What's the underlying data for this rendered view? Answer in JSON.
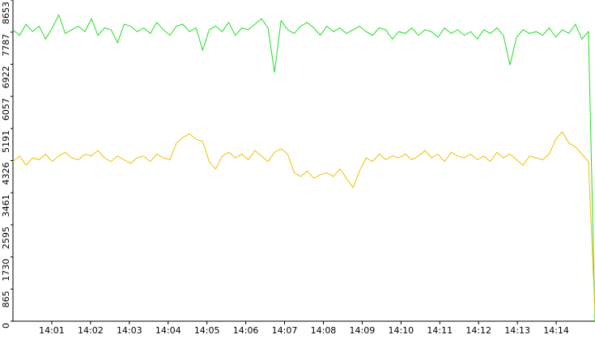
{
  "chart_data": {
    "type": "line",
    "xlim": [
      0,
      15
    ],
    "xticks": [
      {
        "value": 1,
        "label": "14:01"
      },
      {
        "value": 2,
        "label": "14:02"
      },
      {
        "value": 3,
        "label": "14:03"
      },
      {
        "value": 4,
        "label": "14:04"
      },
      {
        "value": 5,
        "label": "14:05"
      },
      {
        "value": 6,
        "label": "14:06"
      },
      {
        "value": 7,
        "label": "14:07"
      },
      {
        "value": 8,
        "label": "14:08"
      },
      {
        "value": 9,
        "label": "14:09"
      },
      {
        "value": 10,
        "label": "14:10"
      },
      {
        "value": 11,
        "label": "14:11"
      },
      {
        "value": 12,
        "label": "14:12"
      },
      {
        "value": 13,
        "label": "14:13"
      },
      {
        "value": 14,
        "label": "14:14"
      }
    ],
    "ylim": [
      0,
      8653
    ],
    "yticks": [
      0,
      865,
      1730,
      2595,
      3461,
      4326,
      5191,
      6057,
      6922,
      7787,
      8653
    ],
    "grid": false,
    "series": [
      {
        "color": "#22dd22",
        "values": [
          7850,
          7700,
          8000,
          7800,
          7950,
          7600,
          7900,
          8250,
          7750,
          7850,
          7950,
          7800,
          8150,
          7700,
          7900,
          7850,
          7500,
          8000,
          7950,
          7800,
          7900,
          7750,
          8050,
          7850,
          7700,
          7950,
          8000,
          7800,
          7900,
          7300,
          7850,
          7950,
          7800,
          8050,
          7700,
          7900,
          7850,
          8000,
          8150,
          7900,
          6700,
          8100,
          7850,
          7750,
          7950,
          8050,
          7900,
          7700,
          7950,
          7800,
          7900,
          7750,
          7850,
          7950,
          7800,
          7700,
          7900,
          7850,
          7600,
          7800,
          7750,
          7900,
          7700,
          7850,
          7800,
          7650,
          7900,
          7750,
          7850,
          7700,
          7800,
          7600,
          7850,
          7750,
          7900,
          7700,
          6900,
          7650,
          7850,
          7750,
          7800,
          7700,
          7900,
          7650,
          7850,
          7750,
          8000,
          7600,
          7800,
          0
        ]
      },
      {
        "color": "#f0c000",
        "values": [
          4300,
          4450,
          4200,
          4400,
          4350,
          4500,
          4300,
          4450,
          4550,
          4400,
          4350,
          4500,
          4450,
          4600,
          4400,
          4300,
          4450,
          4350,
          4250,
          4400,
          4450,
          4300,
          4500,
          4400,
          4350,
          4800,
          4950,
          5050,
          4900,
          4850,
          4300,
          4100,
          4450,
          4550,
          4400,
          4500,
          4350,
          4600,
          4450,
          4300,
          4550,
          4650,
          4500,
          4000,
          3900,
          4050,
          3850,
          3950,
          4000,
          3900,
          4100,
          3850,
          3600,
          4050,
          4400,
          4300,
          4500,
          4350,
          4450,
          4400,
          4500,
          4350,
          4450,
          4600,
          4400,
          4500,
          4300,
          4550,
          4450,
          4400,
          4500,
          4350,
          4450,
          4300,
          4550,
          4400,
          4500,
          4350,
          4200,
          4450,
          4400,
          4350,
          4500,
          4900,
          5100,
          4800,
          4700,
          4500,
          4300,
          200
        ]
      }
    ]
  }
}
